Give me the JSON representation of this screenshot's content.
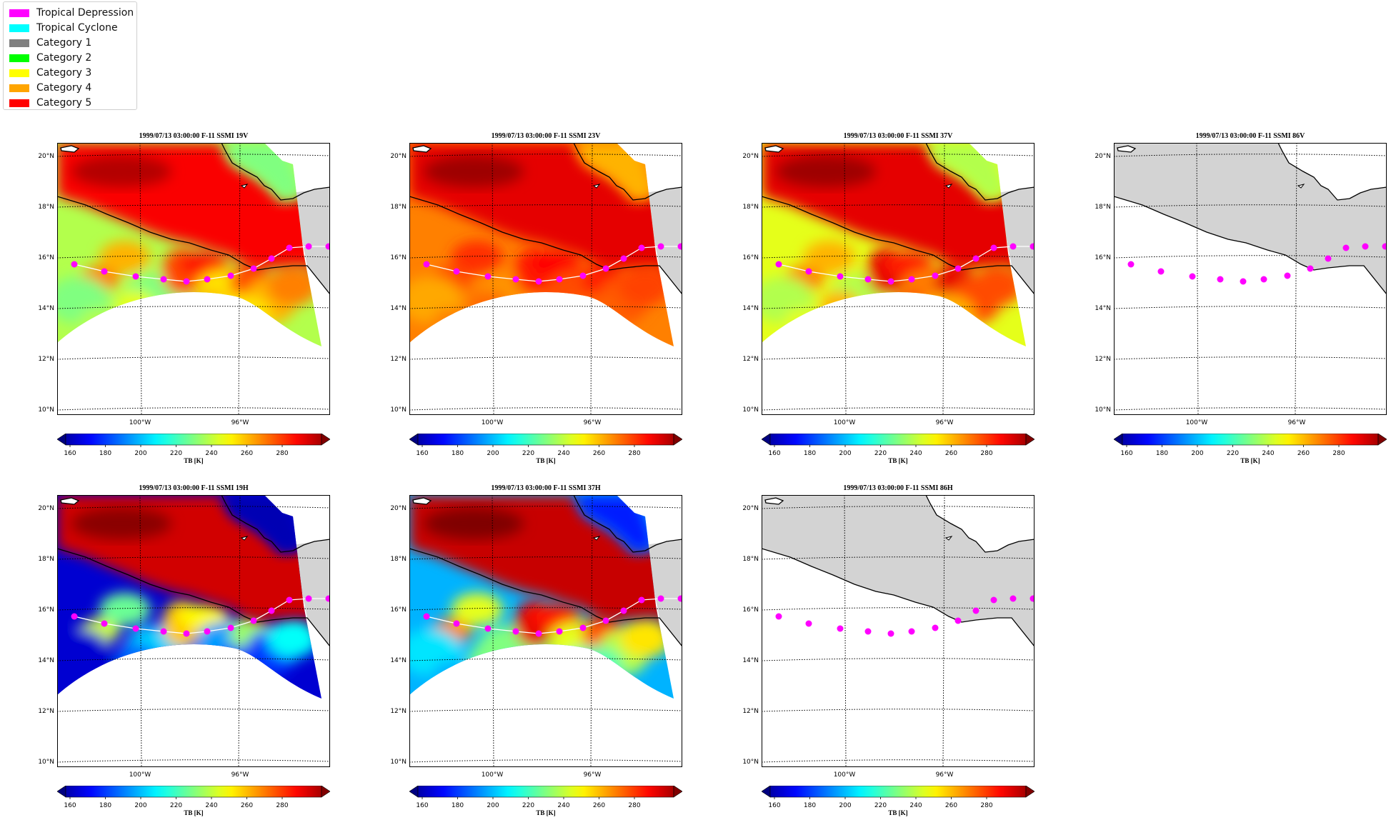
{
  "legend": {
    "items": [
      {
        "label": "Tropical Depression",
        "color": "#ff00ff"
      },
      {
        "label": "Tropical Cyclone",
        "color": "#00ffff"
      },
      {
        "label": "Category 1",
        "color": "#808080"
      },
      {
        "label": "Category 2",
        "color": "#00ff00"
      },
      {
        "label": "Category 3",
        "color": "#ffff00"
      },
      {
        "label": "Category 4",
        "color": "#ffa500"
      },
      {
        "label": "Category 5",
        "color": "#ff0000"
      }
    ]
  },
  "lat_ticks": [
    "20°N",
    "18°N",
    "16°N",
    "14°N",
    "12°N",
    "10°N"
  ],
  "lon_ticks": [
    "100°W",
    "96°W"
  ],
  "colorbar": {
    "label": "TB [K]",
    "ticks": [
      "160",
      "180",
      "200",
      "220",
      "240",
      "260",
      "280"
    ],
    "colormap": "jet"
  },
  "track_color": "#ff00ff",
  "panels": [
    {
      "title": "1999/07/13 03:00:00  F-11 SSMI 19V",
      "style": "19v"
    },
    {
      "title": "1999/07/13 03:00:00  F-11 SSMI 23V",
      "style": "23v"
    },
    {
      "title": "1999/07/13 03:00:00  F-11 SSMI 37V",
      "style": "37v"
    },
    {
      "title": "1999/07/13 03:00:00  F-11 SSMI 86V",
      "style": "empty"
    },
    {
      "title": "1999/07/13 03:00:00  F-11 SSMI 19H",
      "style": "19h"
    },
    {
      "title": "1999/07/13 03:00:00  F-11 SSMI 37H",
      "style": "37h"
    },
    {
      "title": "1999/07/13 03:00:00  F-11 SSMI 86H",
      "style": "empty"
    }
  ]
}
